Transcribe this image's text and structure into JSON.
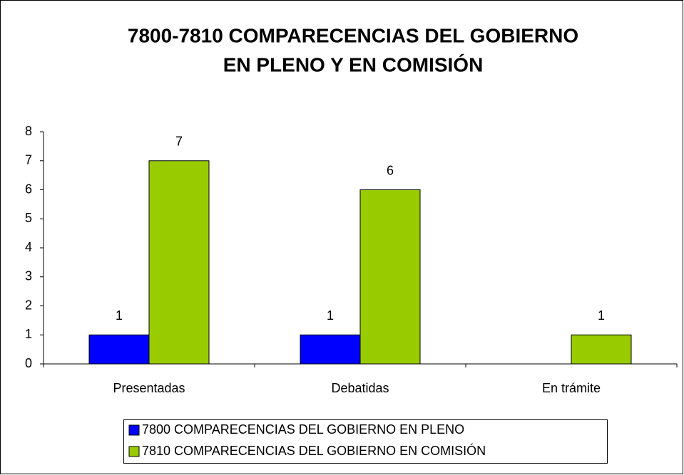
{
  "chart_data": {
    "type": "bar",
    "title": [
      "7800-7810 COMPARECENCIAS DEL GOBIERNO",
      "EN PLENO Y EN COMISIÓN"
    ],
    "categories": [
      "Presentadas",
      "Debatidas",
      "En trámite"
    ],
    "series": [
      {
        "name": "7800 COMPARECENCIAS DEL GOBIERNO EN PLENO",
        "color": "#0000ff",
        "values": [
          1,
          1,
          null
        ]
      },
      {
        "name": "7810 COMPARECENCIAS DEL GOBIERNO EN COMISIÓN",
        "color": "#99cc00",
        "values": [
          7,
          6,
          1
        ]
      }
    ],
    "ylim": [
      0,
      8
    ],
    "yticks": [
      0,
      1,
      2,
      3,
      4,
      5,
      6,
      7,
      8
    ],
    "grid": false,
    "legend": "bottom"
  }
}
